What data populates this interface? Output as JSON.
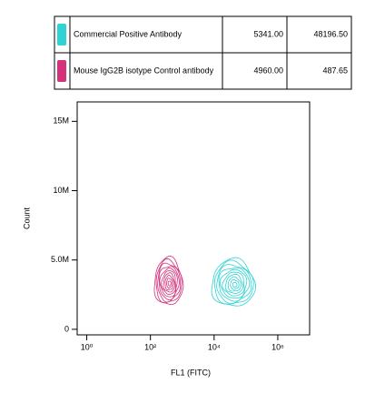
{
  "chart_data": {
    "type": "contour",
    "x_label": "FL1 (FITC)",
    "y_label": "Count",
    "log_x": true,
    "xlim": [
      0.5,
      10000000
    ],
    "ylim": [
      -400000,
      16400000
    ],
    "xticks": [
      {
        "value": 1,
        "label": "10⁰"
      },
      {
        "value": 100,
        "label": "10²"
      },
      {
        "value": 10000,
        "label": "10⁴"
      },
      {
        "value": 1000000,
        "label": "10⁶"
      }
    ],
    "yticks": [
      0,
      {
        "value": 5000000,
        "label": "5.0M"
      },
      {
        "value": 10000000,
        "label": "10M"
      },
      {
        "value": 15000000,
        "label": "15M"
      }
    ],
    "series": [
      {
        "name": "Commercial Positive Antibody",
        "color": "#2fd3d3",
        "values": [
          5341,
          48196.5
        ],
        "value_labels": [
          "5341.00",
          "48196.50"
        ],
        "x": 45000,
        "y": 3200000,
        "x_spread": [
          7000,
          160000
        ],
        "y_spread": [
          1400000,
          5100000
        ]
      },
      {
        "name": "Mouse IgG2B isotype Control antibody",
        "color": "#d4307c",
        "values": [
          4960,
          487.65
        ],
        "value_labels": [
          "4960.00",
          "487.65"
        ],
        "x": 400,
        "y": 3300000,
        "x_spread": [
          160,
          1250
        ],
        "y_spread": [
          1600000,
          5300000
        ]
      }
    ]
  }
}
